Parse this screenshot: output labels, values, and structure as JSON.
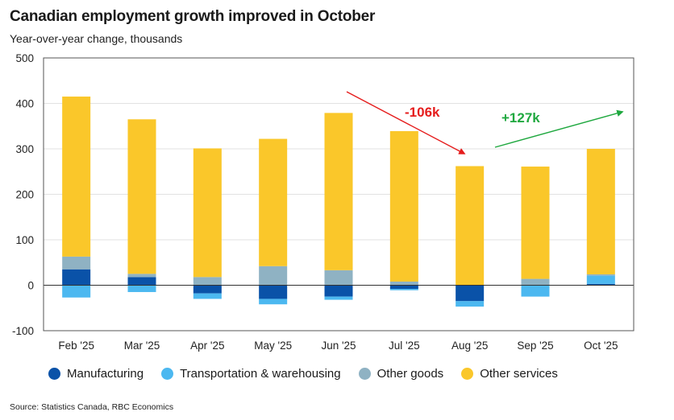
{
  "chart_data": {
    "type": "bar",
    "stacked": true,
    "title": "Canadian employment growth improved in October",
    "subtitle": "Year-over-year change, thousands",
    "xlabel": "",
    "ylabel": "",
    "categories": [
      "Feb '25",
      "Mar '25",
      "Apr '25",
      "May '25",
      "Jun '25",
      "Jul '25",
      "Aug '25",
      "Sep '25",
      "Oct '25"
    ],
    "ylim": [
      -100,
      500
    ],
    "yticks": [
      -100,
      0,
      100,
      200,
      300,
      400,
      500
    ],
    "grid": true,
    "legend_position": "bottom",
    "series": [
      {
        "name": "Manufacturing",
        "color": "#0a52a8",
        "values": [
          35,
          18,
          -18,
          -30,
          -25,
          -8,
          -35,
          0,
          3
        ]
      },
      {
        "name": "Transportation & warehousing",
        "color": "#4cb8f0",
        "values": [
          -27,
          -15,
          -12,
          -12,
          -7,
          -3,
          -12,
          -25,
          18
        ]
      },
      {
        "name": "Other goods",
        "color": "#8fb2c3",
        "values": [
          28,
          7,
          18,
          42,
          33,
          8,
          0,
          14,
          3
        ]
      },
      {
        "name": "Other services",
        "color": "#fac72a",
        "values": [
          352,
          340,
          283,
          280,
          346,
          331,
          262,
          247,
          276
        ]
      }
    ],
    "annotations": [
      {
        "text": "-106k",
        "color": "#e51c1c"
      },
      {
        "text": "+127k",
        "color": "#1fa83f"
      }
    ]
  },
  "source": "Source: Statistics Canada, RBC Economics"
}
